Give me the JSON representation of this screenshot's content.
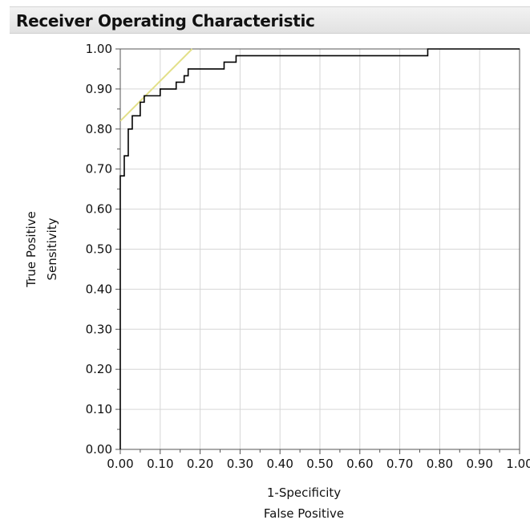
{
  "panel": {
    "title": "Receiver Operating Characteristic"
  },
  "chart_data": {
    "type": "line",
    "title": "Receiver Operating Characteristic",
    "xlabel": [
      "1-Specificity",
      "False Positive"
    ],
    "ylabel": [
      "True Positive",
      "Sensitivity"
    ],
    "xlim": [
      0,
      1
    ],
    "ylim": [
      0,
      1
    ],
    "grid": true,
    "x_ticks": [
      "0.00",
      "0.10",
      "0.20",
      "0.30",
      "0.40",
      "0.50",
      "0.60",
      "0.70",
      "0.80",
      "0.90",
      "1.00"
    ],
    "y_ticks": [
      "0.00",
      "0.10",
      "0.20",
      "0.30",
      "0.40",
      "0.50",
      "0.60",
      "0.70",
      "0.80",
      "0.90",
      "1.00"
    ],
    "x_tick_values": [
      0,
      0.1,
      0.2,
      0.3,
      0.4,
      0.5,
      0.6,
      0.7,
      0.8,
      0.9,
      1.0
    ],
    "y_tick_values": [
      0,
      0.1,
      0.2,
      0.3,
      0.4,
      0.5,
      0.6,
      0.7,
      0.8,
      0.9,
      1.0
    ],
    "colors": {
      "roc": "#000000",
      "tangent": "#e3e08a",
      "grid": "#d6d6d6",
      "axis": "#555555"
    },
    "series": [
      {
        "values": [
          [
            0.0,
            0.0
          ],
          [
            0.0,
            0.683
          ],
          [
            0.01,
            0.683
          ],
          [
            0.01,
            0.733
          ],
          [
            0.02,
            0.733
          ],
          [
            0.02,
            0.8
          ],
          [
            0.03,
            0.8
          ],
          [
            0.03,
            0.833
          ],
          [
            0.05,
            0.833
          ],
          [
            0.05,
            0.867
          ],
          [
            0.06,
            0.867
          ],
          [
            0.06,
            0.883
          ],
          [
            0.1,
            0.883
          ],
          [
            0.1,
            0.9
          ],
          [
            0.14,
            0.9
          ],
          [
            0.14,
            0.917
          ],
          [
            0.16,
            0.917
          ],
          [
            0.16,
            0.933
          ],
          [
            0.17,
            0.933
          ],
          [
            0.17,
            0.95
          ],
          [
            0.26,
            0.95
          ],
          [
            0.26,
            0.967
          ],
          [
            0.29,
            0.967
          ],
          [
            0.29,
            0.983
          ],
          [
            0.77,
            0.983
          ],
          [
            0.77,
            1.0
          ],
          [
            1.0,
            1.0
          ]
        ]
      },
      {
        "values": [
          [
            0.0,
            0.82
          ],
          [
            0.18,
            1.0
          ]
        ]
      }
    ]
  }
}
